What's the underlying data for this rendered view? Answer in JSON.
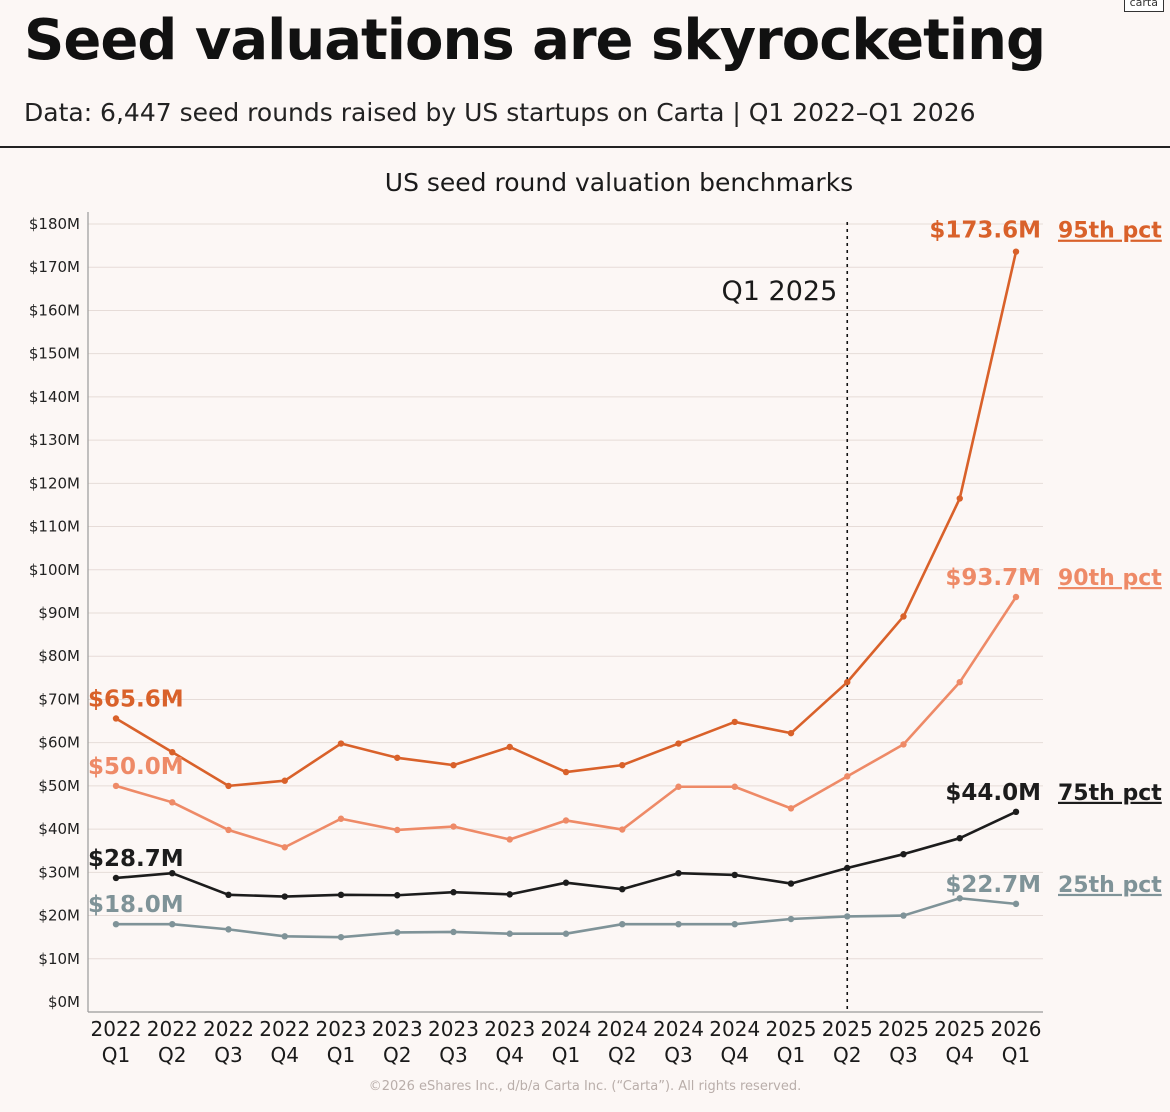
{
  "brand": "carta",
  "title": "Seed valuations are skyrocketing",
  "subtitle": "Data: 6,447 seed rounds raised by US startups on Carta | Q1 2022–Q1 2026",
  "footer": "©2026 eShares Inc., d/b/a Carta Inc. (“Carta”). All rights reserved.",
  "chart_data": {
    "type": "line",
    "title": "US seed round valuation benchmarks",
    "xlabel": "",
    "ylabel": "",
    "ylim": [
      0,
      180
    ],
    "grid": true,
    "categories": [
      [
        "2022",
        "Q1"
      ],
      [
        "2022",
        "Q2"
      ],
      [
        "2022",
        "Q3"
      ],
      [
        "2022",
        "Q4"
      ],
      [
        "2023",
        "Q1"
      ],
      [
        "2023",
        "Q2"
      ],
      [
        "2023",
        "Q3"
      ],
      [
        "2023",
        "Q4"
      ],
      [
        "2024",
        "Q1"
      ],
      [
        "2024",
        "Q2"
      ],
      [
        "2024",
        "Q3"
      ],
      [
        "2024",
        "Q4"
      ],
      [
        "2025",
        "Q1"
      ],
      [
        "2025",
        "Q2"
      ],
      [
        "2025",
        "Q3"
      ],
      [
        "2025",
        "Q4"
      ],
      [
        "2026",
        "Q1"
      ]
    ],
    "y_ticks": [
      {
        "value": 0,
        "label": "$0M"
      },
      {
        "value": 10,
        "label": "$10M"
      },
      {
        "value": 20,
        "label": "$20M"
      },
      {
        "value": 30,
        "label": "$30M"
      },
      {
        "value": 40,
        "label": "$40M"
      },
      {
        "value": 50,
        "label": "$50M"
      },
      {
        "value": 60,
        "label": "$60M"
      },
      {
        "value": 70,
        "label": "$70M"
      },
      {
        "value": 80,
        "label": "$80M"
      },
      {
        "value": 90,
        "label": "$90M"
      },
      {
        "value": 100,
        "label": "$100M"
      },
      {
        "value": 110,
        "label": "$110M"
      },
      {
        "value": 120,
        "label": "$120M"
      },
      {
        "value": 130,
        "label": "$130M"
      },
      {
        "value": 140,
        "label": "$140M"
      },
      {
        "value": 150,
        "label": "$150M"
      },
      {
        "value": 160,
        "label": "$160M"
      },
      {
        "value": 170,
        "label": "$170M"
      },
      {
        "value": 180,
        "label": "$180M"
      }
    ],
    "series": [
      {
        "name": "95th pct",
        "color": "#d9612a",
        "values": [
          65.6,
          57.8,
          50.0,
          51.2,
          59.8,
          56.5,
          54.8,
          59.0,
          53.2,
          54.8,
          59.8,
          64.8,
          62.2,
          74.0,
          89.2,
          116.5,
          173.6
        ],
        "start_label": "$65.6M",
        "end_label": "$173.6M"
      },
      {
        "name": "90th pct",
        "color": "#ee8a67",
        "values": [
          50.0,
          46.2,
          39.8,
          35.8,
          42.4,
          39.8,
          40.6,
          37.6,
          42.0,
          39.9,
          49.8,
          49.8,
          44.8,
          52.2,
          59.6,
          74.0,
          93.7
        ],
        "start_label": "$50.0M",
        "end_label": "$93.7M"
      },
      {
        "name": "75th pct",
        "color": "#1c1c1c",
        "values": [
          28.7,
          29.8,
          24.8,
          24.4,
          24.8,
          24.7,
          25.4,
          24.9,
          27.6,
          26.1,
          29.8,
          29.4,
          27.4,
          31.0,
          34.2,
          37.9,
          44.0
        ],
        "start_label": "$28.7M",
        "end_label": "$44.0M"
      },
      {
        "name": "25th pct",
        "color": "#7f9398",
        "values": [
          18.0,
          18.0,
          16.8,
          15.2,
          15.0,
          16.1,
          16.2,
          15.8,
          15.8,
          18.0,
          18.0,
          18.0,
          19.2,
          19.8,
          20.0,
          24.0,
          22.7
        ],
        "start_label": "$18.0M",
        "end_label": "$22.7M"
      }
    ],
    "annotation": {
      "label": "Q1 2025",
      "category_index": 13
    }
  }
}
